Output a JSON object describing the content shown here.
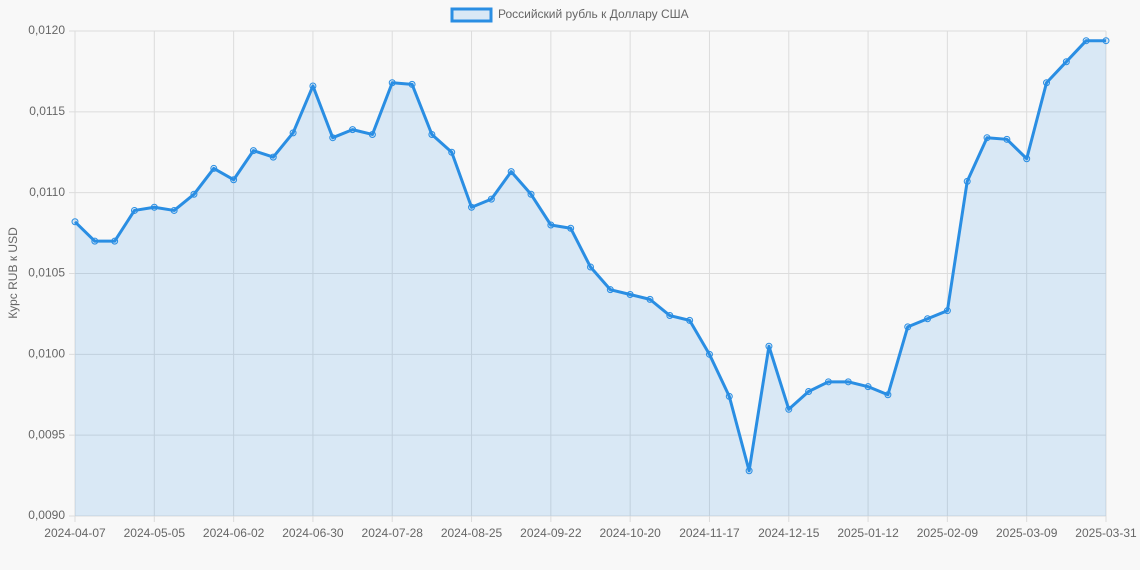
{
  "chart_data": {
    "type": "line",
    "legend": "top",
    "y_label": "Курс RUB к USD",
    "categories": [
      "2024-04-07",
      null,
      null,
      null,
      "2024-05-05",
      null,
      null,
      null,
      "2024-06-02",
      null,
      null,
      null,
      "2024-06-30",
      null,
      null,
      null,
      "2024-07-28",
      null,
      null,
      null,
      "2024-08-25",
      null,
      null,
      null,
      "2024-09-22",
      null,
      null,
      null,
      "2024-10-20",
      null,
      null,
      null,
      "2024-11-17",
      null,
      null,
      null,
      "2024-12-15",
      null,
      null,
      null,
      "2025-01-12",
      null,
      null,
      null,
      "2025-02-09",
      null,
      null,
      null,
      "2025-03-09",
      null,
      null,
      null,
      "2025-03-31"
    ],
    "series": [
      {
        "name": "Российский рубль к Доллару США",
        "color": "#2a8ee3",
        "fill": "rgba(42,142,227,0.15)",
        "values": [
          0.01082,
          0.0107,
          0.0107,
          0.01089,
          0.01091,
          0.01089,
          0.01099,
          0.01115,
          0.01108,
          0.01126,
          0.01122,
          0.01137,
          0.01166,
          0.01134,
          0.01139,
          0.01136,
          0.01168,
          0.01167,
          0.01136,
          0.01125,
          0.01091,
          0.01096,
          0.01113,
          0.01099,
          0.0108,
          0.01078,
          0.01054,
          0.0104,
          0.01037,
          0.01034,
          0.01024,
          0.01021,
          0.01,
          0.00974,
          0.00928,
          0.01005,
          0.00966,
          0.00977,
          0.00983,
          0.00983,
          0.0098,
          0.00975,
          0.01017,
          0.01022,
          0.01027,
          0.01107,
          0.01134,
          0.01133,
          0.01121,
          0.01168,
          0.01181,
          0.01194,
          0.01194
        ]
      }
    ],
    "ylim": [
      0.009,
      0.012
    ],
    "yticks": [
      {
        "value": 0.009,
        "label": "0,0090"
      },
      {
        "value": 0.0095,
        "label": "0,0095"
      },
      {
        "value": 0.01,
        "label": "0,0100"
      },
      {
        "value": 0.0105,
        "label": "0,0105"
      },
      {
        "value": 0.011,
        "label": "0,0110"
      },
      {
        "value": 0.0115,
        "label": "0,0115"
      },
      {
        "value": 0.012,
        "label": "0,0120"
      }
    ],
    "grid": true
  }
}
